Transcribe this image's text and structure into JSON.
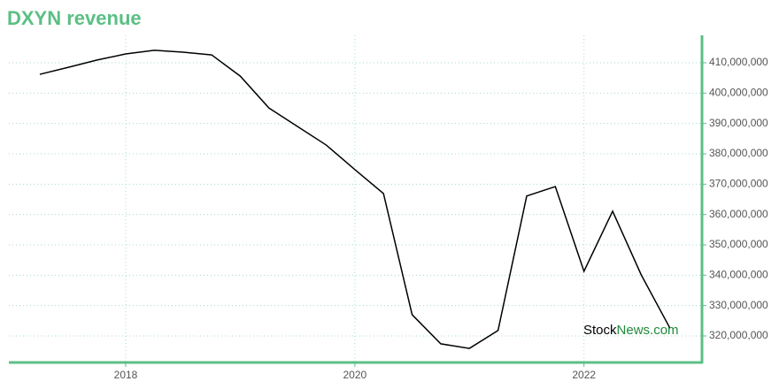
{
  "chart_data": {
    "type": "line",
    "title": "DXYN revenue",
    "watermark": [
      "Stock",
      "News.com"
    ],
    "x": [
      2017.25,
      2017.5,
      2017.75,
      2018.0,
      2018.25,
      2018.5,
      2018.75,
      2019.0,
      2019.25,
      2019.5,
      2019.75,
      2020.0,
      2020.25,
      2020.5,
      2020.75,
      2021.0,
      2021.25,
      2021.5,
      2021.75,
      2022.0,
      2022.25,
      2022.5,
      2022.75
    ],
    "series": [
      {
        "name": "revenue",
        "color": "#000000",
        "values": [
          406200000,
          408500000,
          410900000,
          412900000,
          414100000,
          413500000,
          412600000,
          405600000,
          395100000,
          389000000,
          382900000,
          374800000,
          366900000,
          327000000,
          317400000,
          315900000,
          321800000,
          366100000,
          369200000,
          341300000,
          361100000,
          340100000,
          322600000
        ]
      }
    ],
    "xlim": [
      2016.98,
      2023.03
    ],
    "xticks": [
      2018,
      2020,
      2022
    ],
    "ylim": [
      311260000,
      419030000
    ],
    "yticks": [
      {
        "value": 320000000,
        "label": "320,000,000"
      },
      {
        "value": 330000000,
        "label": "330,000,000"
      },
      {
        "value": 340000000,
        "label": "340,000,000"
      },
      {
        "value": 350000000,
        "label": "350,000,000"
      },
      {
        "value": 360000000,
        "label": "360,000,000"
      },
      {
        "value": 370000000,
        "label": "370,000,000"
      },
      {
        "value": 380000000,
        "label": "380,000,000"
      },
      {
        "value": 390000000,
        "label": "390,000,000"
      },
      {
        "value": 400000000,
        "label": "400,000,000"
      },
      {
        "value": 410000000,
        "label": "410,000,000"
      }
    ],
    "grid": true,
    "axis_color": "#5bbf84",
    "grid_color": "#a9dcc8"
  }
}
